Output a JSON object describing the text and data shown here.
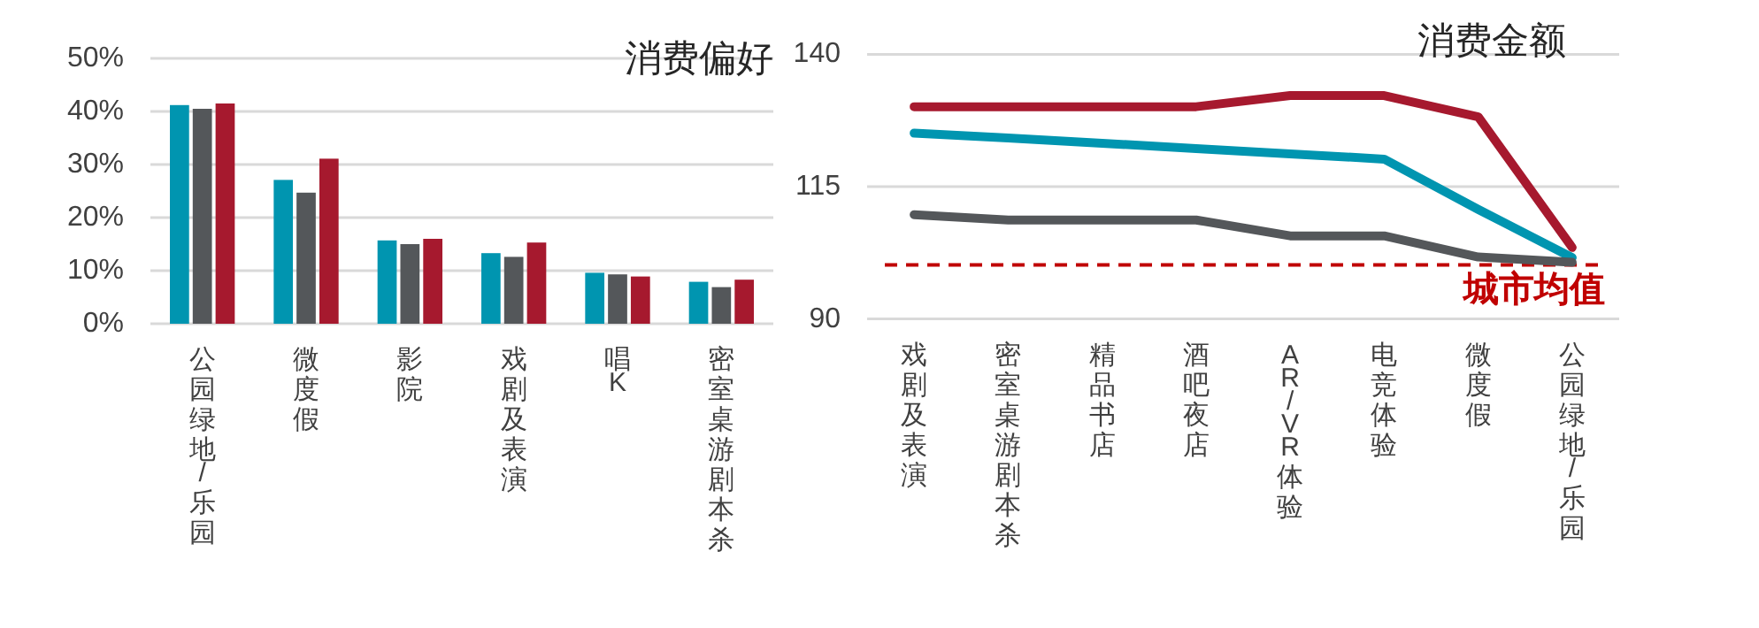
{
  "chart_data": [
    {
      "type": "bar",
      "title": "消费偏好",
      "categories": [
        "公园绿地/乐园",
        "微度假",
        "影院",
        "戏剧及表演",
        "唱K",
        "密室桌游剧本杀"
      ],
      "series": [
        {
          "color": "#0095b0",
          "values": [
            41.2,
            27.1,
            15.7,
            13.3,
            9.6,
            7.9
          ]
        },
        {
          "color": "#54575a",
          "values": [
            40.5,
            24.7,
            15.0,
            12.6,
            9.3,
            6.9
          ]
        },
        {
          "color": "#a6192e",
          "values": [
            41.5,
            31.1,
            16.0,
            15.3,
            8.9,
            8.3
          ]
        }
      ],
      "ylim": [
        0,
        50
      ],
      "yticks": [
        {
          "value": 0,
          "label": "0%"
        },
        {
          "value": 10,
          "label": "10%"
        },
        {
          "value": 20,
          "label": "20%"
        },
        {
          "value": 30,
          "label": "30%"
        },
        {
          "value": 40,
          "label": "40%"
        },
        {
          "value": 50,
          "label": "50%"
        }
      ],
      "grid": "y"
    },
    {
      "type": "line",
      "title": "消费金额",
      "categories": [
        "戏剧及表演",
        "密室桌游剧本杀",
        "精品书店",
        "酒吧夜店",
        "AR/VR体验",
        "电竞体验",
        "微度假",
        "公园绿地/乐园"
      ],
      "series": [
        {
          "color": "#a6192e",
          "values": [
            130.1,
            130.1,
            130.1,
            130.1,
            132.2,
            132.2,
            128.2,
            103.5
          ]
        },
        {
          "color": "#0095b0",
          "values": [
            125.1,
            124.2,
            123.2,
            122.2,
            121.2,
            120.2,
            110.7,
            101.6
          ]
        },
        {
          "color": "#54575a",
          "values": [
            109.7,
            108.7,
            108.7,
            108.7,
            105.7,
            105.7,
            101.7,
            100.7
          ]
        }
      ],
      "ylim": [
        90,
        140
      ],
      "yticks": [
        90,
        115,
        140
      ],
      "grid": "y",
      "ref_lines": [
        {
          "axis": "y",
          "value": 100.2,
          "label": "城市均值",
          "color": "#c00000",
          "line_style": "dashed"
        }
      ]
    }
  ]
}
